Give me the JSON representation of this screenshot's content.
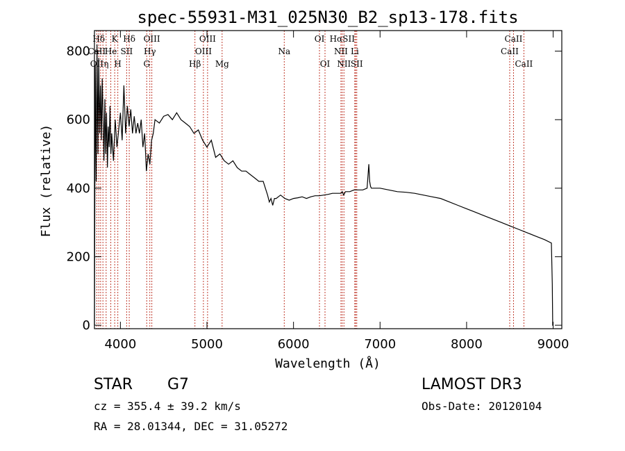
{
  "chart_data": {
    "type": "line",
    "title": "spec-55931-M31_025N30_B2_sp13-178.fits",
    "xlabel": "Wavelength (Å)",
    "ylabel": "Flux (relative)",
    "xlim": [
      3700,
      9100
    ],
    "ylim": [
      -10,
      860
    ],
    "xticks": [
      4000,
      5000,
      6000,
      7000,
      8000,
      9000
    ],
    "yticks": [
      0,
      200,
      400,
      600,
      800
    ],
    "colors": {
      "spectrum": "#000000",
      "lines": "#c0392b"
    },
    "spectrum": {
      "name": "flux",
      "x": [
        3700,
        3710,
        3720,
        3730,
        3740,
        3750,
        3760,
        3770,
        3780,
        3790,
        3800,
        3810,
        3820,
        3830,
        3840,
        3850,
        3860,
        3870,
        3880,
        3890,
        3900,
        3920,
        3940,
        3960,
        3980,
        4000,
        4020,
        4040,
        4060,
        4080,
        4100,
        4120,
        4140,
        4160,
        4180,
        4200,
        4220,
        4240,
        4260,
        4280,
        4300,
        4320,
        4340,
        4360,
        4380,
        4400,
        4450,
        4500,
        4550,
        4600,
        4650,
        4700,
        4750,
        4800,
        4850,
        4900,
        4950,
        5000,
        5050,
        5100,
        5150,
        5200,
        5250,
        5300,
        5350,
        5400,
        5450,
        5500,
        5550,
        5600,
        5650,
        5700,
        5720,
        5740,
        5760,
        5780,
        5800,
        5850,
        5900,
        5950,
        6000,
        6050,
        6100,
        6150,
        6200,
        6250,
        6300,
        6350,
        6400,
        6450,
        6500,
        6550,
        6563,
        6580,
        6600,
        6650,
        6700,
        6750,
        6800,
        6850,
        6870,
        6880,
        6890,
        6900,
        6950,
        7000,
        7100,
        7200,
        7300,
        7400,
        7500,
        7600,
        7700,
        7800,
        7900,
        8000,
        8100,
        8200,
        8300,
        8400,
        8500,
        8600,
        8700,
        8800,
        8900,
        8980,
        8990,
        8995,
        9000
      ],
      "y": [
        0,
        760,
        420,
        820,
        500,
        780,
        560,
        700,
        540,
        720,
        600,
        480,
        660,
        500,
        620,
        460,
        580,
        520,
        640,
        500,
        560,
        480,
        600,
        520,
        570,
        620,
        540,
        700,
        560,
        640,
        580,
        630,
        560,
        610,
        560,
        590,
        560,
        600,
        520,
        560,
        450,
        500,
        470,
        540,
        560,
        600,
        590,
        610,
        615,
        600,
        620,
        600,
        590,
        580,
        560,
        570,
        540,
        520,
        540,
        490,
        500,
        480,
        470,
        480,
        460,
        450,
        450,
        440,
        430,
        420,
        420,
        380,
        360,
        370,
        350,
        370,
        370,
        380,
        370,
        365,
        370,
        372,
        375,
        370,
        375,
        378,
        378,
        380,
        382,
        385,
        385,
        385,
        390,
        380,
        390,
        390,
        395,
        395,
        395,
        400,
        470,
        420,
        405,
        400,
        400,
        400,
        395,
        390,
        388,
        385,
        380,
        375,
        370,
        360,
        350,
        340,
        330,
        320,
        310,
        300,
        290,
        280,
        270,
        260,
        250,
        240,
        120,
        0,
        0
      ]
    },
    "line_markers": [
      {
        "label": "Hδ",
        "wavelength": 3750,
        "row": 0
      },
      {
        "label": "K",
        "wavelength": 3934,
        "row": 0
      },
      {
        "label": "Hδ",
        "wavelength": 4102,
        "row": 0
      },
      {
        "label": "OIII",
        "wavelength": 4363,
        "row": 0
      },
      {
        "label": "OIII",
        "wavelength": 5007,
        "row": 0
      },
      {
        "label": "OI",
        "wavelength": 6300,
        "row": 0
      },
      {
        "label": "HαSII",
        "wavelength": 6563,
        "row": 0
      },
      {
        "label": "CaII",
        "wavelength": 8542,
        "row": 0
      },
      {
        "label": "CaII",
        "wavelength": 3727,
        "row": 1
      },
      {
        "label": "He",
        "wavelength": 3889,
        "row": 1
      },
      {
        "label": "SII",
        "wavelength": 4072,
        "row": 1
      },
      {
        "label": "Hγ",
        "wavelength": 4340,
        "row": 1
      },
      {
        "label": "OIII",
        "wavelength": 4959,
        "row": 1
      },
      {
        "label": "Na",
        "wavelength": 5893,
        "row": 1
      },
      {
        "label": "NII",
        "wavelength": 6548,
        "row": 1
      },
      {
        "label": "Li",
        "wavelength": 6708,
        "row": 1
      },
      {
        "label": "CaII",
        "wavelength": 8498,
        "row": 1
      },
      {
        "label": "OII",
        "wavelength": 3727,
        "row": 2
      },
      {
        "label": "η",
        "wavelength": 3835,
        "row": 2
      },
      {
        "label": "H",
        "wavelength": 3970,
        "row": 2
      },
      {
        "label": "G",
        "wavelength": 4304,
        "row": 2
      },
      {
        "label": "Hβ",
        "wavelength": 4861,
        "row": 2
      },
      {
        "label": "Mg",
        "wavelength": 5175,
        "row": 2
      },
      {
        "label": "OI",
        "wavelength": 6364,
        "row": 2
      },
      {
        "label": "NII",
        "wavelength": 6583,
        "row": 2
      },
      {
        "label": "SII",
        "wavelength": 6731,
        "row": 2
      },
      {
        "label": "CaII",
        "wavelength": 8662,
        "row": 2
      }
    ],
    "vertical_lines": [
      3727,
      3750,
      3771,
      3798,
      3835,
      3889,
      3934,
      3970,
      4072,
      4102,
      4304,
      4340,
      4363,
      4861,
      4959,
      5007,
      5175,
      5893,
      6300,
      6364,
      6548,
      6563,
      6583,
      6708,
      6717,
      6731,
      8498,
      8542,
      8662
    ]
  },
  "info": {
    "class": "STAR",
    "subclass": "G7",
    "cz": "cz = 355.4 ± 39.2 km/s",
    "radec": "RA =  28.01344, DEC =  31.05272",
    "survey": "LAMOST DR3",
    "obs_date": "Obs-Date: 20120104"
  }
}
